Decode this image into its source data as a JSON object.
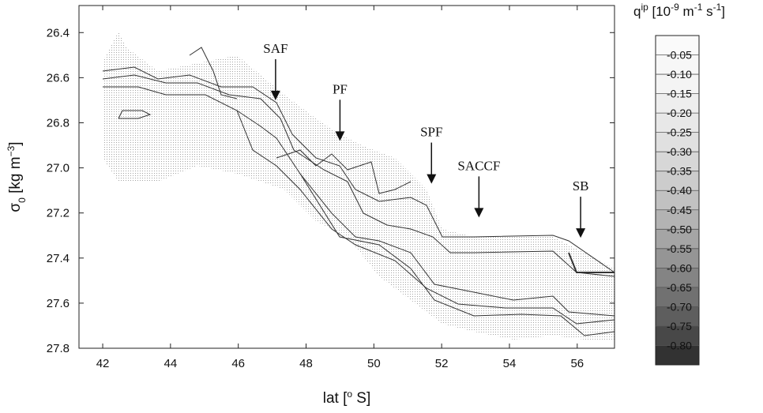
{
  "chart_data": {
    "type": "contour",
    "xlabel": [
      {
        "text": "lat ["
      },
      {
        "text": "o",
        "sup": true
      },
      {
        "text": " S]"
      }
    ],
    "ylabel": [
      {
        "text": "σ"
      },
      {
        "text": "0",
        "sub": true
      },
      {
        "text": " [kg m"
      },
      {
        "text": "−3",
        "sup": true
      },
      {
        "text": "]"
      }
    ],
    "xlim": [
      41.3,
      57.1
    ],
    "xticks": [
      42,
      44,
      46,
      48,
      50,
      52,
      54,
      56
    ],
    "ylim": [
      27.8,
      26.28
    ],
    "yticks": [
      26.4,
      26.6,
      26.8,
      {
        "value": 27,
        "label": "27.0"
      },
      27.2,
      27.4,
      27.6,
      27.8
    ],
    "annotations": [
      {
        "text": "SAF",
        "x": 47.1,
        "y": 26.7
      },
      {
        "text": "PF",
        "x": 49.0,
        "y": 26.88
      },
      {
        "text": "SPF",
        "x": 51.7,
        "y": 27.07
      },
      {
        "text": "SACCF",
        "x": 53.1,
        "y": 27.22
      },
      {
        "text": "SB",
        "x": 56.1,
        "y": 27.31
      }
    ],
    "colorbar": {
      "label": [
        {
          "text": "q"
        },
        {
          "text": "ip",
          "sup": true
        },
        {
          "text": " [10"
        },
        {
          "text": "-9",
          "sup": true
        },
        {
          "text": " m"
        },
        {
          "text": "-1",
          "sup": true
        },
        {
          "text": " s"
        },
        {
          "text": "-1",
          "sup": true
        },
        {
          "text": "]"
        }
      ],
      "clim": [
        0,
        -0.85
      ],
      "ticks": [
        -0.05,
        {
          "value": -0.1,
          "label": "-0.10"
        },
        -0.15,
        {
          "value": -0.2,
          "label": "-0.20"
        },
        -0.25,
        {
          "value": -0.3,
          "label": "-0.30"
        },
        -0.35,
        {
          "value": -0.4,
          "label": "-0.40"
        },
        -0.45,
        {
          "value": -0.5,
          "label": "-0.50"
        },
        -0.55,
        {
          "value": -0.6,
          "label": "-0.60"
        },
        -0.65,
        {
          "value": -0.7,
          "label": "-0.70"
        },
        -0.75,
        {
          "value": -0.8,
          "label": "-0.80"
        }
      ]
    }
  }
}
